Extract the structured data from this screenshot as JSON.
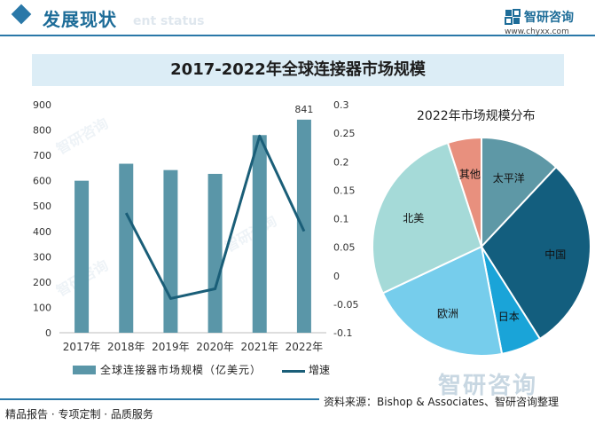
{
  "header": {
    "title": "发展现状",
    "watermark": "ent status",
    "brand_name": "智研咨询",
    "brand_url": "www.chyxx.com"
  },
  "chart_title": "2017-2022年全球连接器市场规模",
  "colors": {
    "bar": "#5a96a8",
    "line": "#1a5e78",
    "header_blue": "#2a78a8",
    "title_bg": "#dcedf6"
  },
  "chart_data": [
    {
      "type": "bar",
      "categories": [
        "2017年",
        "2018年",
        "2019年",
        "2020年",
        "2021年",
        "2022年"
      ],
      "series": [
        {
          "name": "全球连接器市场规模（亿美元）",
          "type": "bar",
          "axis": "left",
          "values": [
            600,
            667,
            642,
            627,
            780,
            841
          ]
        },
        {
          "name": "增速",
          "type": "line",
          "axis": "right",
          "values": [
            null,
            0.11,
            -0.04,
            -0.023,
            0.245,
            0.078
          ]
        }
      ],
      "data_labels": [
        {
          "category": "2022年",
          "text": "841"
        }
      ],
      "y_left": {
        "ylim": [
          0,
          900
        ],
        "ticks": [
          "0",
          "100",
          "200",
          "300",
          "400",
          "500",
          "600",
          "700",
          "800",
          "900"
        ]
      },
      "y_right": {
        "ylim": [
          -0.1,
          0.3
        ],
        "ticks": [
          "-0.1",
          "-0.05",
          "0",
          "0.05",
          "0.1",
          "0.15",
          "0.2",
          "0.25",
          "0.3"
        ]
      },
      "legend": "bottom",
      "grid": false
    },
    {
      "type": "pie",
      "title": "2022年市场规模分布",
      "slices": [
        {
          "label": "太平洋",
          "value": 0.12,
          "color": "#5e98a6"
        },
        {
          "label": "中国",
          "value": 0.29,
          "color": "#135e7e"
        },
        {
          "label": "日本",
          "value": 0.06,
          "color": "#1aa4d8"
        },
        {
          "label": "欧洲",
          "value": 0.21,
          "color": "#76cdec"
        },
        {
          "label": "北美",
          "value": 0.27,
          "color": "#a5dad8"
        },
        {
          "label": "其他",
          "value": 0.05,
          "color": "#e8907e"
        }
      ]
    }
  ],
  "source": "资料来源：Bishop & Associates、智研咨询整理",
  "footer": "精品报告 · 专项定制 · 品质服务",
  "watermark_big": "智研咨询"
}
